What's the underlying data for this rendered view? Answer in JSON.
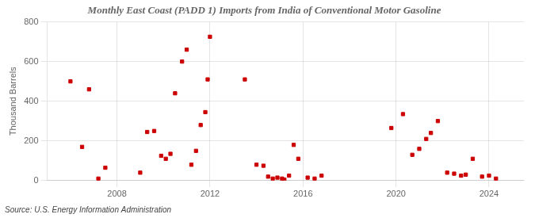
{
  "chart_data": {
    "type": "scatter",
    "title": "Monthly East Coast (PADD 1) Imports from India of Conventional Motor Gasoline",
    "ylabel": "Thousand Barrels",
    "source": "Source: U.S. Energy Information Administration",
    "color": "#cc0000",
    "marker": "square",
    "grid": true,
    "xlim": [
      2005.0,
      2025.5
    ],
    "xticks": [
      2008,
      2012,
      2016,
      2020,
      2024
    ],
    "ylim": [
      0,
      800
    ],
    "yticks": [
      0,
      200,
      400,
      600,
      800
    ],
    "x": [
      2006.0,
      2006.5,
      2006.8,
      2007.2,
      2007.5,
      2009.0,
      2009.3,
      2009.6,
      2009.9,
      2010.1,
      2010.3,
      2010.5,
      2010.8,
      2011.0,
      2011.2,
      2011.4,
      2011.6,
      2011.8,
      2011.9,
      2012.0,
      2013.5,
      2014.0,
      2014.3,
      2014.5,
      2014.7,
      2014.9,
      2015.1,
      2015.2,
      2015.4,
      2015.6,
      2015.8,
      2016.2,
      2016.5,
      2016.8,
      2019.8,
      2020.3,
      2020.7,
      2021.0,
      2021.3,
      2021.5,
      2021.8,
      2022.2,
      2022.5,
      2022.8,
      2023.0,
      2023.3,
      2023.7,
      2024.0,
      2024.3
    ],
    "values": [
      500,
      170,
      460,
      10,
      65,
      40,
      245,
      250,
      125,
      110,
      135,
      440,
      600,
      660,
      80,
      150,
      280,
      345,
      510,
      725,
      510,
      80,
      75,
      20,
      10,
      15,
      10,
      5,
      25,
      180,
      110,
      15,
      10,
      25,
      265,
      335,
      130,
      160,
      210,
      240,
      300,
      40,
      35,
      25,
      30,
      110,
      20,
      25,
      10
    ]
  }
}
